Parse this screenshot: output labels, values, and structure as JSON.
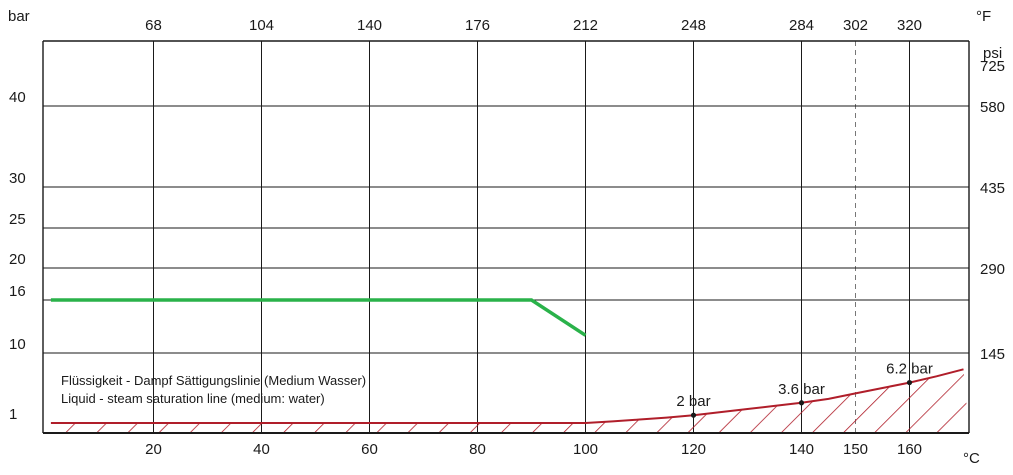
{
  "chart_data": {
    "type": "line",
    "units": {
      "left": "bar",
      "top": "°F",
      "right": "psi",
      "bottom": "°C"
    },
    "x_bottom_ticks": [
      "20",
      "40",
      "60",
      "80",
      "100",
      "120",
      "140",
      "150",
      "160"
    ],
    "x_top_ticks": [
      "68",
      "104",
      "140",
      "176",
      "212",
      "248",
      "284",
      "302",
      "320"
    ],
    "y_left_ticks": [
      "1",
      "10",
      "16",
      "20",
      "25",
      "30",
      "40"
    ],
    "y_right_ticks": [
      "145",
      "290",
      "435",
      "580",
      "725"
    ],
    "xlim": [
      1,
      170
    ],
    "annotations": [
      "Flüssigkeit - Dampf Sättigungslinie (Medium Wasser)",
      "Liquid - steam saturation line (medium: water)"
    ],
    "series": [
      {
        "color": "#2ab24a",
        "x": [
          1,
          90,
          100
        ],
        "y": [
          16,
          16,
          12
        ]
      },
      {
        "color": "#b01e2a",
        "hatched": true,
        "x": [
          1,
          20,
          60,
          100,
          105,
          110,
          115,
          120,
          125,
          130,
          135,
          140,
          145,
          150,
          155,
          160,
          165,
          170
        ],
        "y": [
          1,
          1,
          1,
          1,
          1.2,
          1.45,
          1.7,
          2.0,
          2.4,
          2.8,
          3.2,
          3.6,
          4.1,
          4.8,
          5.5,
          6.2,
          7.0,
          7.9
        ]
      }
    ],
    "labeled_points": [
      {
        "x": 120,
        "y": 2.0,
        "label": "2 bar"
      },
      {
        "x": 140,
        "y": 3.6,
        "label": "3.6 bar"
      },
      {
        "x": 160,
        "y": 6.2,
        "label": "6.2 bar"
      }
    ],
    "dashed_reference_x": 150,
    "grid": true
  }
}
